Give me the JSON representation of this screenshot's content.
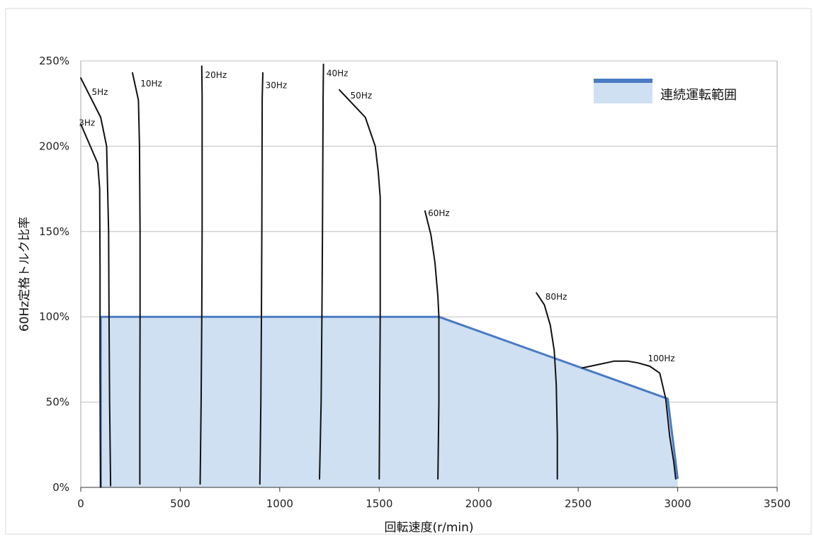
{
  "chart_data": {
    "type": "area",
    "title": "",
    "xlabel": "回転速度(r/min)",
    "ylabel": "60Hz定格トルク比率",
    "xlim": [
      0,
      3500
    ],
    "ylim": [
      0,
      250
    ],
    "x_ticks": [
      0,
      500,
      1000,
      1500,
      2000,
      2500,
      3000,
      3500
    ],
    "y_ticks": [
      0,
      50,
      100,
      150,
      200,
      250
    ],
    "y_tick_labels": [
      "0%",
      "50%",
      "100%",
      "150%",
      "200%",
      "250%"
    ],
    "grid": "horizontal",
    "legend": {
      "position": "top-right",
      "entries": [
        {
          "name": "連続運転範囲"
        }
      ]
    },
    "colors": {
      "fill": "#cfe0f2",
      "edge": "#4a7bc4",
      "curve": "#111111",
      "grid": "#c0c0c0"
    },
    "series": [
      {
        "name": "連続運転範囲",
        "kind": "area",
        "x": [
          100,
          100,
          1800,
          2950,
          3000
        ],
        "y": [
          0,
          100,
          100,
          52,
          5
        ]
      },
      {
        "name": "3Hz",
        "kind": "line",
        "x": [
          0,
          85,
          95,
          97,
          97,
          98,
          100
        ],
        "y": [
          213,
          190,
          175,
          130,
          80,
          30,
          0
        ]
      },
      {
        "name": "5Hz",
        "kind": "line",
        "x": [
          0,
          100,
          130,
          140,
          142,
          145,
          150
        ],
        "y": [
          240,
          217,
          200,
          150,
          100,
          50,
          1
        ]
      },
      {
        "name": "10Hz",
        "kind": "line",
        "x": [
          260,
          290,
          295,
          298,
          298,
          297,
          297
        ],
        "y": [
          243,
          227,
          200,
          150,
          100,
          50,
          2
        ]
      },
      {
        "name": "20Hz",
        "kind": "line",
        "x": [
          608,
          610,
          610,
          608,
          605,
          600
        ],
        "y": [
          247,
          230,
          150,
          100,
          50,
          2
        ]
      },
      {
        "name": "30Hz",
        "kind": "line",
        "x": [
          915,
          912,
          910,
          908,
          905,
          900
        ],
        "y": [
          243,
          228,
          150,
          100,
          50,
          2
        ]
      },
      {
        "name": "40Hz",
        "kind": "line",
        "x": [
          1220,
          1218,
          1215,
          1212,
          1208,
          1200
        ],
        "y": [
          248,
          230,
          150,
          100,
          50,
          5
        ]
      },
      {
        "name": "50Hz",
        "kind": "line",
        "x": [
          1300,
          1430,
          1480,
          1495,
          1505,
          1505,
          1500
        ],
        "y": [
          233,
          217,
          200,
          185,
          170,
          100,
          5
        ]
      },
      {
        "name": "60Hz",
        "kind": "line",
        "x": [
          1730,
          1760,
          1780,
          1795,
          1800,
          1800,
          1795
        ],
        "y": [
          162,
          148,
          132,
          112,
          100,
          50,
          5
        ]
      },
      {
        "name": "80Hz",
        "kind": "line",
        "x": [
          2290,
          2330,
          2360,
          2380,
          2390,
          2395,
          2395
        ],
        "y": [
          114,
          107,
          95,
          80,
          60,
          30,
          5
        ]
      },
      {
        "name": "100Hz",
        "kind": "line",
        "x": [
          2520,
          2600,
          2680,
          2750,
          2800,
          2860,
          2910,
          2940,
          2960,
          2980,
          2990
        ],
        "y": [
          70,
          72,
          74,
          74,
          73,
          71,
          67,
          52,
          30,
          15,
          5
        ]
      }
    ],
    "annotations": [
      {
        "text": "3Hz",
        "x": -10,
        "y": 212
      },
      {
        "text": "5Hz",
        "x": 55,
        "y": 230
      },
      {
        "text": "10Hz",
        "x": 300,
        "y": 235
      },
      {
        "text": "20Hz",
        "x": 625,
        "y": 240
      },
      {
        "text": "30Hz",
        "x": 928,
        "y": 234
      },
      {
        "text": "40Hz",
        "x": 1235,
        "y": 241
      },
      {
        "text": "50Hz",
        "x": 1355,
        "y": 228
      },
      {
        "text": "60Hz",
        "x": 1745,
        "y": 159
      },
      {
        "text": "80Hz",
        "x": 2335,
        "y": 110
      },
      {
        "text": "100Hz",
        "x": 2850,
        "y": 74
      }
    ]
  }
}
